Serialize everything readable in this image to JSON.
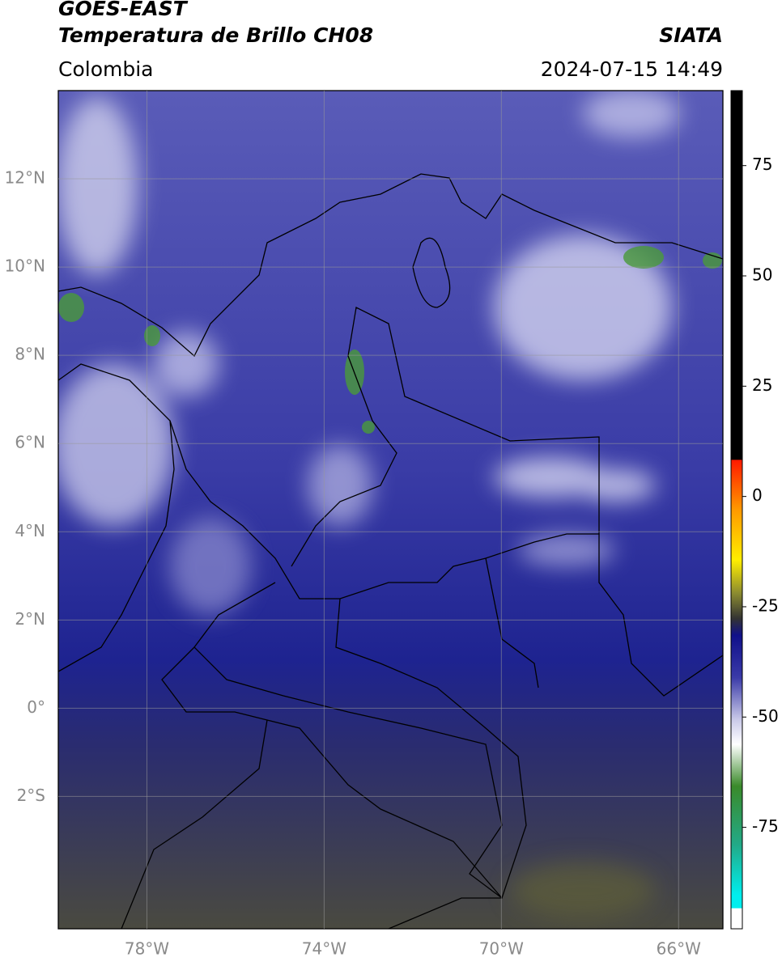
{
  "header": {
    "title_line1": "GOES-EAST",
    "title_line2": "Temperatura de Brillo CH08",
    "source": "SIATA",
    "region": "Colombia",
    "datetime": "2024-07-15 14:49"
  },
  "map": {
    "xlim": [
      -80,
      -65
    ],
    "ylim": [
      -5,
      14
    ],
    "lon_ticks": [
      {
        "value": -78,
        "label": "78°W"
      },
      {
        "value": -74,
        "label": "74°W"
      },
      {
        "value": -70,
        "label": "70°W"
      },
      {
        "value": -66,
        "label": "66°W"
      }
    ],
    "lat_ticks": [
      {
        "value": 12,
        "label": "12°N"
      },
      {
        "value": 10,
        "label": "10°N"
      },
      {
        "value": 8,
        "label": "8°N"
      },
      {
        "value": 6,
        "label": "6°N"
      },
      {
        "value": 4,
        "label": "4°N"
      },
      {
        "value": 2,
        "label": "2°N"
      },
      {
        "value": 0,
        "label": "0°"
      },
      {
        "value": -2,
        "label": "2°S"
      }
    ]
  },
  "colorbar": {
    "lim": [
      -98,
      92
    ],
    "ticks": [
      75,
      50,
      25,
      0,
      -25,
      -50,
      -75
    ]
  }
}
